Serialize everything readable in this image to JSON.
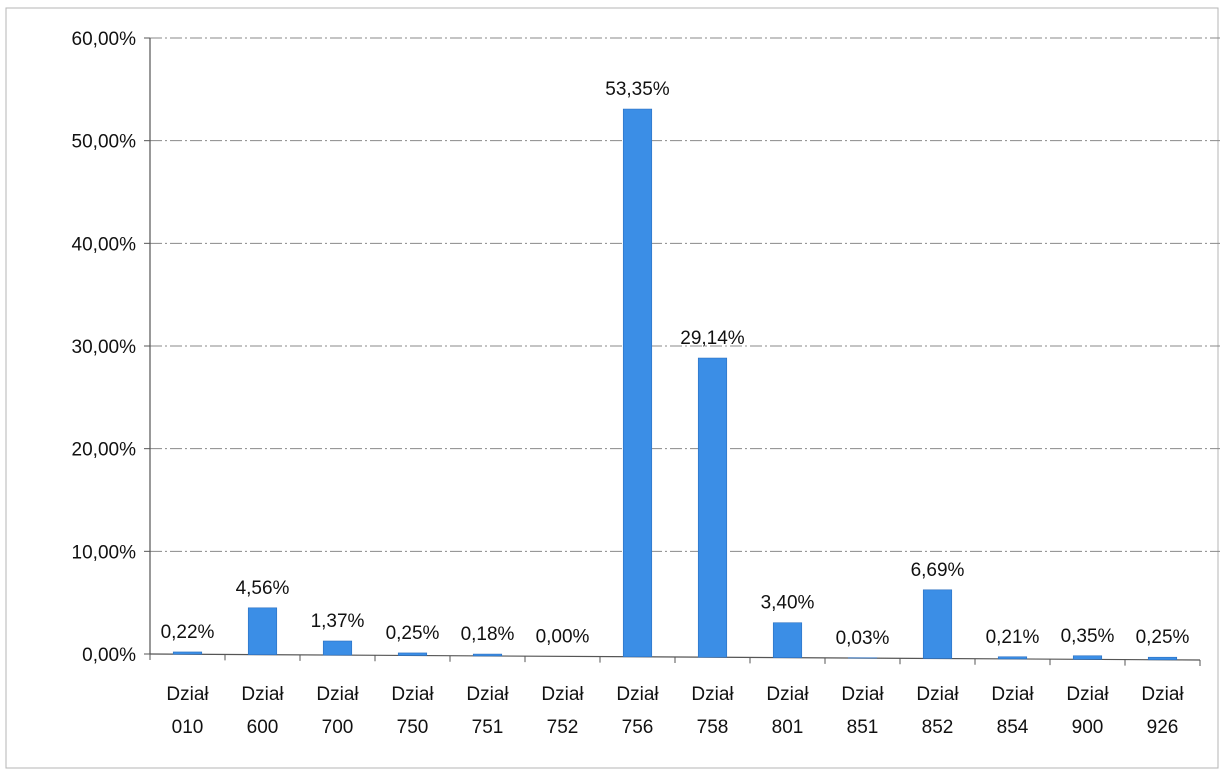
{
  "chart_data": {
    "type": "bar",
    "title": "",
    "xlabel": "",
    "ylabel": "",
    "ylim": [
      0,
      60
    ],
    "yticks": [
      "0,00%",
      "10,00%",
      "20,00%",
      "30,00%",
      "40,00%",
      "50,00%",
      "60,00%"
    ],
    "grid": true,
    "legend": "none",
    "bar_color": "#3b8ee6",
    "categories": [
      [
        "Dział",
        "010"
      ],
      [
        "Dział",
        "600"
      ],
      [
        "Dział",
        "700"
      ],
      [
        "Dział",
        "750"
      ],
      [
        "Dział",
        "751"
      ],
      [
        "Dział",
        "752"
      ],
      [
        "Dział",
        "756"
      ],
      [
        "Dział",
        "758"
      ],
      [
        "Dział",
        "801"
      ],
      [
        "Dział",
        "851"
      ],
      [
        "Dział",
        "852"
      ],
      [
        "Dział",
        "854"
      ],
      [
        "Dział",
        "900"
      ],
      [
        "Dział",
        "926"
      ]
    ],
    "values": [
      0.22,
      4.56,
      1.37,
      0.25,
      0.18,
      0.0,
      53.35,
      29.14,
      3.4,
      0.03,
      6.69,
      0.21,
      0.35,
      0.25
    ],
    "data_labels": [
      "0,22%",
      "4,56%",
      "1,37%",
      "0,25%",
      "0,18%",
      "0,00%",
      "53,35%",
      "29,14%",
      "3,40%",
      "0,03%",
      "6,69%",
      "0,21%",
      "0,35%",
      "0,25%"
    ]
  }
}
